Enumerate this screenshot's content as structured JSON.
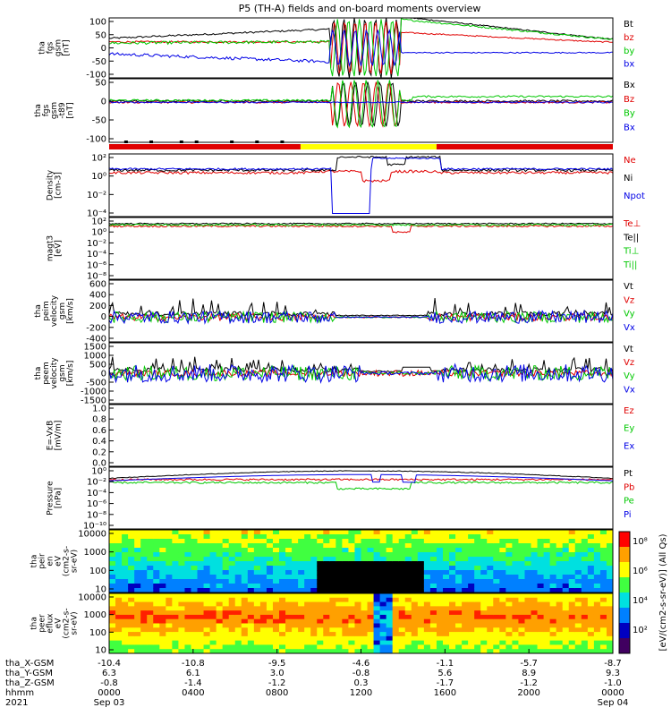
{
  "title": "P5 (TH-A) fields and on-board moments overview",
  "colors": {
    "black": "#000000",
    "red": "#e00000",
    "green": "#00c800",
    "blue": "#0000e6",
    "yellow": "#ffff00"
  },
  "chart_data": [
    {
      "type": "line",
      "ylabel_lines": [
        "tha",
        "fgs",
        "gsm",
        "[nT]"
      ],
      "ylim": [
        -100,
        100
      ],
      "ticks": [
        "100",
        "50",
        "0",
        "-50",
        "-100"
      ],
      "series": [
        {
          "name": "Bt",
          "color": "black"
        },
        {
          "name": "bz",
          "color": "red"
        },
        {
          "name": "by",
          "color": "green"
        },
        {
          "name": "bx",
          "color": "blue"
        }
      ]
    },
    {
      "type": "line",
      "ylabel_lines": [
        "tha",
        "fgs",
        "gsm",
        "-t89",
        "[nT]"
      ],
      "ylim": [
        -120,
        70
      ],
      "ticks": [
        "50",
        "0",
        "-50",
        "-100"
      ],
      "series": [
        {
          "name": "Bx",
          "color": "black"
        },
        {
          "name": "Bz",
          "color": "red"
        },
        {
          "name": "By",
          "color": "green"
        },
        {
          "name": "Bx",
          "color": "blue"
        }
      ]
    },
    {
      "type": "line",
      "ylabel_lines": [
        "Density",
        "[cm-3]"
      ],
      "ylim_log": [
        -5,
        2.3
      ],
      "ticks": [
        "10²",
        "10⁰",
        "10⁻²",
        "10⁻⁴"
      ],
      "series": [
        {
          "name": "Ne",
          "color": "red"
        },
        {
          "name": "Ni",
          "color": "black"
        },
        {
          "name": "Npot",
          "color": "blue"
        }
      ]
    },
    {
      "type": "line",
      "ylabel_lines": [
        "magt3",
        "[eV]"
      ],
      "ylim_log": [
        -10,
        3.5
      ],
      "ticks": [
        "10²",
        "10⁰",
        "10⁻²",
        "10⁻⁴",
        "10⁻⁶",
        "10⁻⁸"
      ],
      "series": [
        {
          "name": "Te⊥",
          "color": "red"
        },
        {
          "name": "Te||",
          "color": "black"
        },
        {
          "name": "Ti⊥",
          "color": "green"
        },
        {
          "name": "Ti||",
          "color": "green"
        }
      ]
    },
    {
      "type": "line",
      "ylabel_lines": [
        "tha",
        "peim",
        "velocity",
        "gsm",
        "[km/s]"
      ],
      "ylim": [
        -400,
        600
      ],
      "ticks": [
        "600",
        "400",
        "200",
        "0",
        "-200",
        "-400"
      ],
      "series": [
        {
          "name": "Vt",
          "color": "black"
        },
        {
          "name": "Vz",
          "color": "red"
        },
        {
          "name": "Vy",
          "color": "green"
        },
        {
          "name": "Vx",
          "color": "blue"
        }
      ]
    },
    {
      "type": "line",
      "ylabel_lines": [
        "tha",
        "peem",
        "velocity",
        "gsm",
        "[km/s]"
      ],
      "ylim": [
        -1500,
        1500
      ],
      "ticks": [
        "1500",
        "1000",
        "500",
        "0",
        "-500",
        "-1000",
        "-1500"
      ],
      "series": [
        {
          "name": "Vt",
          "color": "black"
        },
        {
          "name": "Vz",
          "color": "red"
        },
        {
          "name": "Vy",
          "color": "green"
        },
        {
          "name": "Vx",
          "color": "blue"
        }
      ]
    },
    {
      "type": "line",
      "ylabel_lines": [
        "E=-VxB",
        "[mV/m]"
      ],
      "ylim": [
        0,
        1
      ],
      "ticks": [
        "1.0",
        "0.8",
        "0.6",
        "0.4",
        "0.2",
        "0.0"
      ],
      "series": [
        {
          "name": "Ez",
          "color": "red"
        },
        {
          "name": "Ey",
          "color": "green"
        },
        {
          "name": "Ex",
          "color": "blue"
        }
      ]
    },
    {
      "type": "line",
      "ylabel_lines": [
        "Pressure",
        "[nPa]"
      ],
      "ylim_log": [
        -10,
        1
      ],
      "ticks": [
        "10⁰",
        "10⁻²",
        "10⁻⁴",
        "10⁻⁶",
        "10⁻⁸",
        "10⁻¹⁰"
      ],
      "series": [
        {
          "name": "Pt",
          "color": "black"
        },
        {
          "name": "Pb",
          "color": "red"
        },
        {
          "name": "Pe",
          "color": "green"
        },
        {
          "name": "Pi",
          "color": "blue"
        }
      ]
    },
    {
      "type": "heatmap",
      "ylabel_lines": [
        "tha",
        "peir",
        "en",
        "eV",
        "(cm2-s-",
        "sr-eV)"
      ],
      "ylim_log": [
        0.8,
        4.3
      ],
      "ticks": [
        "10000",
        "1000",
        "100",
        "10"
      ]
    },
    {
      "type": "heatmap",
      "ylabel_lines": [
        "tha",
        "peer",
        "eflux",
        "eV",
        "(cm2-s-",
        "sr-eV)"
      ],
      "ylim_log": [
        0.8,
        4.3
      ],
      "ticks": [
        "10000",
        "1000",
        "100",
        "10"
      ]
    }
  ],
  "colorbar": {
    "label": "[eV/(cm2-s-sr-eV)] (All Qs)",
    "ticks": [
      "10⁸",
      "10⁶",
      "10⁴",
      "10²"
    ]
  },
  "mode_bar": {
    "segments": [
      {
        "from": 0,
        "to": 0.38,
        "color": "red"
      },
      {
        "from": 0.38,
        "to": 0.65,
        "color": "yellow"
      },
      {
        "from": 0.65,
        "to": 1,
        "color": "red"
      }
    ]
  },
  "xaxis": {
    "tick_positions": [
      0,
      0.1667,
      0.3333,
      0.5,
      0.6667,
      0.8333,
      1
    ],
    "rows": [
      {
        "label": "tha_X-GSM",
        "values": [
          "-10.4",
          "-10.8",
          "-9.5",
          "-4.6",
          "-1.1",
          "-5.7",
          "-8.7"
        ]
      },
      {
        "label": "tha_Y-GSM",
        "values": [
          "6.3",
          "6.1",
          "3.0",
          "-0.8",
          "5.6",
          "8.9",
          "9.3"
        ]
      },
      {
        "label": "tha_Z-GSM",
        "values": [
          "-0.8",
          "-1.4",
          "-1.2",
          "0.3",
          "-1.7",
          "-1.2",
          "-1.0"
        ]
      },
      {
        "label": "hhmm",
        "values": [
          "0000",
          "0400",
          "0800",
          "1200",
          "1600",
          "2000",
          "0000"
        ]
      },
      {
        "label": "2021",
        "values": [
          "Sep 03",
          "",
          "",
          "",
          "",
          "",
          "Sep 04"
        ]
      }
    ]
  }
}
